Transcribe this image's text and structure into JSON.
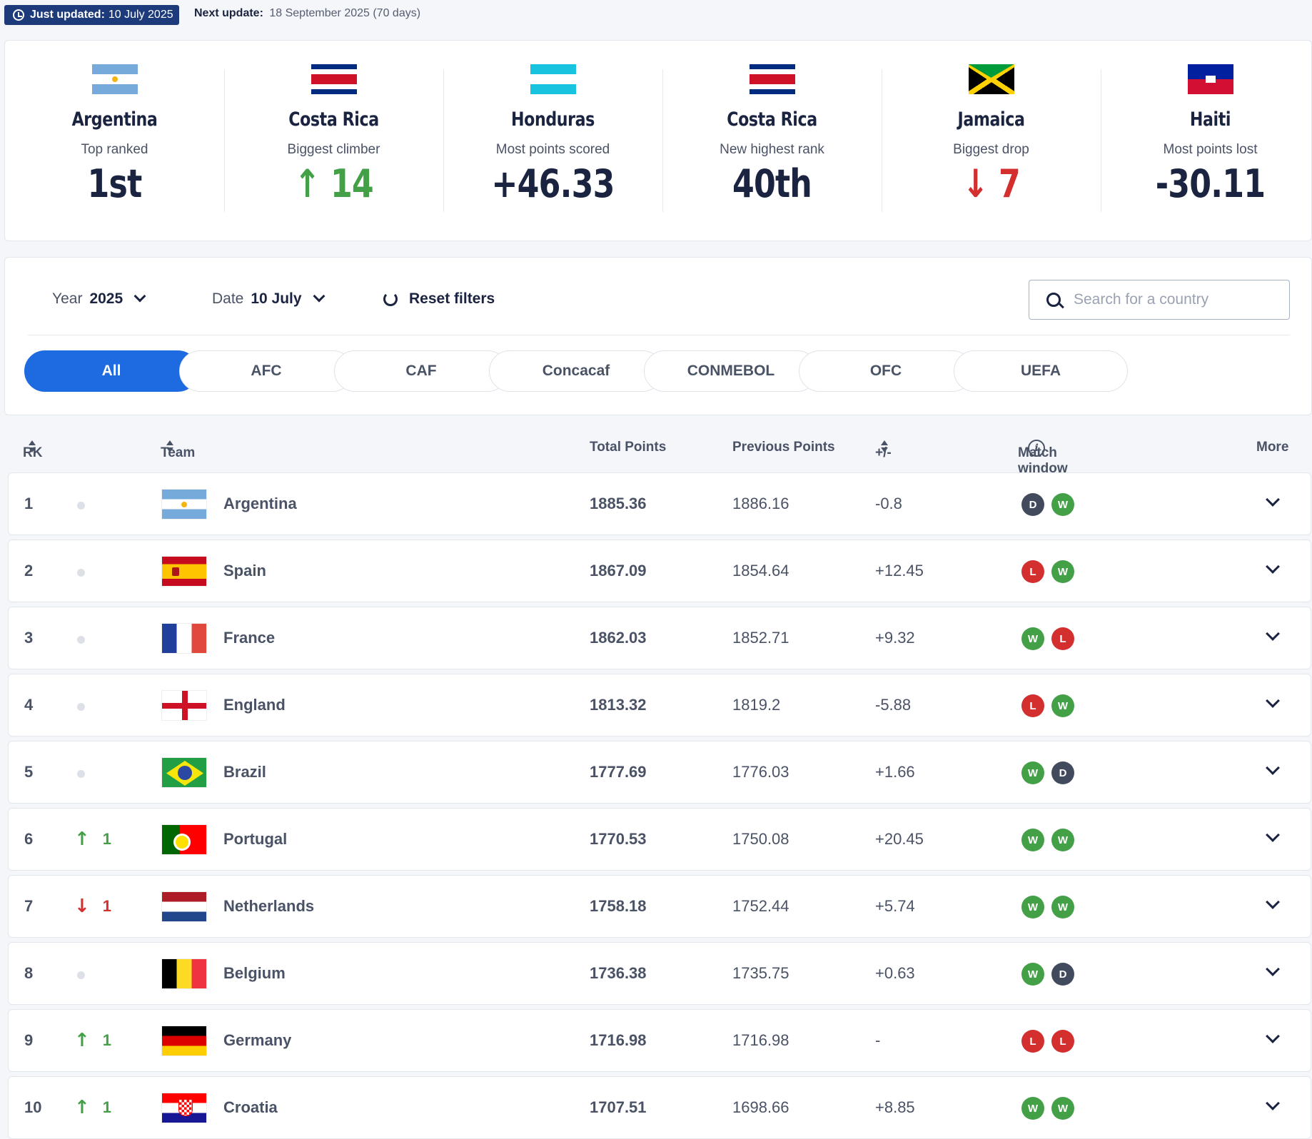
{
  "header": {
    "just_updated_label": "Just updated:",
    "just_updated_value": "10 July 2025",
    "next_update_label": "Next update:",
    "next_update_value": "18 September 2025 (70 days)"
  },
  "stats": [
    {
      "country": "Argentina",
      "label": "Top ranked",
      "value": "1st",
      "trend": "none",
      "flag": "argentina"
    },
    {
      "country": "Costa Rica",
      "label": "Biggest climber",
      "value": "14",
      "trend": "up",
      "flag": "costa-rica"
    },
    {
      "country": "Honduras",
      "label": "Most points scored",
      "value": "+46.33",
      "trend": "none",
      "flag": "honduras"
    },
    {
      "country": "Costa Rica",
      "label": "New highest rank",
      "value": "40th",
      "trend": "none",
      "flag": "costa-rica"
    },
    {
      "country": "Jamaica",
      "label": "Biggest drop",
      "value": "7",
      "trend": "down",
      "flag": "jamaica"
    },
    {
      "country": "Haiti",
      "label": "Most points lost",
      "value": "-30.11",
      "trend": "none",
      "flag": "haiti"
    }
  ],
  "filters": {
    "year_label": "Year",
    "year_value": "2025",
    "date_label": "Date",
    "date_value": "10 July",
    "reset_label": "Reset filters",
    "search_placeholder": "Search for a country"
  },
  "confederations": [
    {
      "label": "All",
      "active": true
    },
    {
      "label": "AFC",
      "active": false
    },
    {
      "label": "CAF",
      "active": false
    },
    {
      "label": "Concacaf",
      "active": false
    },
    {
      "label": "CONMEBOL",
      "active": false
    },
    {
      "label": "OFC",
      "active": false
    },
    {
      "label": "UEFA",
      "active": false
    }
  ],
  "table": {
    "headers": {
      "rank": "RK",
      "team": "Team",
      "total_points": "Total Points",
      "previous_points": "Previous Points",
      "diff": "+/-",
      "match_window": "Match window",
      "more": "More"
    },
    "rows": [
      {
        "rank": "1",
        "move": "none",
        "move_value": "",
        "team": "Argentina",
        "flag": "argentina",
        "total": "1885.36",
        "previous": "1886.16",
        "diff": "-0.8",
        "results": [
          "D",
          "W"
        ]
      },
      {
        "rank": "2",
        "move": "none",
        "move_value": "",
        "team": "Spain",
        "flag": "spain",
        "total": "1867.09",
        "previous": "1854.64",
        "diff": "+12.45",
        "results": [
          "L",
          "W"
        ]
      },
      {
        "rank": "3",
        "move": "none",
        "move_value": "",
        "team": "France",
        "flag": "france",
        "total": "1862.03",
        "previous": "1852.71",
        "diff": "+9.32",
        "results": [
          "W",
          "L"
        ]
      },
      {
        "rank": "4",
        "move": "none",
        "move_value": "",
        "team": "England",
        "flag": "england",
        "total": "1813.32",
        "previous": "1819.2",
        "diff": "-5.88",
        "results": [
          "L",
          "W"
        ]
      },
      {
        "rank": "5",
        "move": "none",
        "move_value": "",
        "team": "Brazil",
        "flag": "brazil",
        "total": "1777.69",
        "previous": "1776.03",
        "diff": "+1.66",
        "results": [
          "W",
          "D"
        ]
      },
      {
        "rank": "6",
        "move": "up",
        "move_value": "1",
        "team": "Portugal",
        "flag": "portugal",
        "total": "1770.53",
        "previous": "1750.08",
        "diff": "+20.45",
        "results": [
          "W",
          "W"
        ]
      },
      {
        "rank": "7",
        "move": "down",
        "move_value": "1",
        "team": "Netherlands",
        "flag": "netherlands",
        "total": "1758.18",
        "previous": "1752.44",
        "diff": "+5.74",
        "results": [
          "W",
          "W"
        ]
      },
      {
        "rank": "8",
        "move": "none",
        "move_value": "",
        "team": "Belgium",
        "flag": "belgium",
        "total": "1736.38",
        "previous": "1735.75",
        "diff": "+0.63",
        "results": [
          "W",
          "D"
        ]
      },
      {
        "rank": "9",
        "move": "up",
        "move_value": "1",
        "team": "Germany",
        "flag": "germany",
        "total": "1716.98",
        "previous": "1716.98",
        "diff": "-",
        "results": [
          "L",
          "L"
        ]
      },
      {
        "rank": "10",
        "move": "up",
        "move_value": "1",
        "team": "Croatia",
        "flag": "croatia",
        "total": "1707.51",
        "previous": "1698.66",
        "diff": "+8.85",
        "results": [
          "W",
          "W"
        ]
      }
    ]
  },
  "colors": {
    "primary": "#1e6ae0",
    "header_badge": "#1d3b7a",
    "win": "#43a047",
    "loss": "#d32f2f",
    "draw": "#424b5e"
  }
}
